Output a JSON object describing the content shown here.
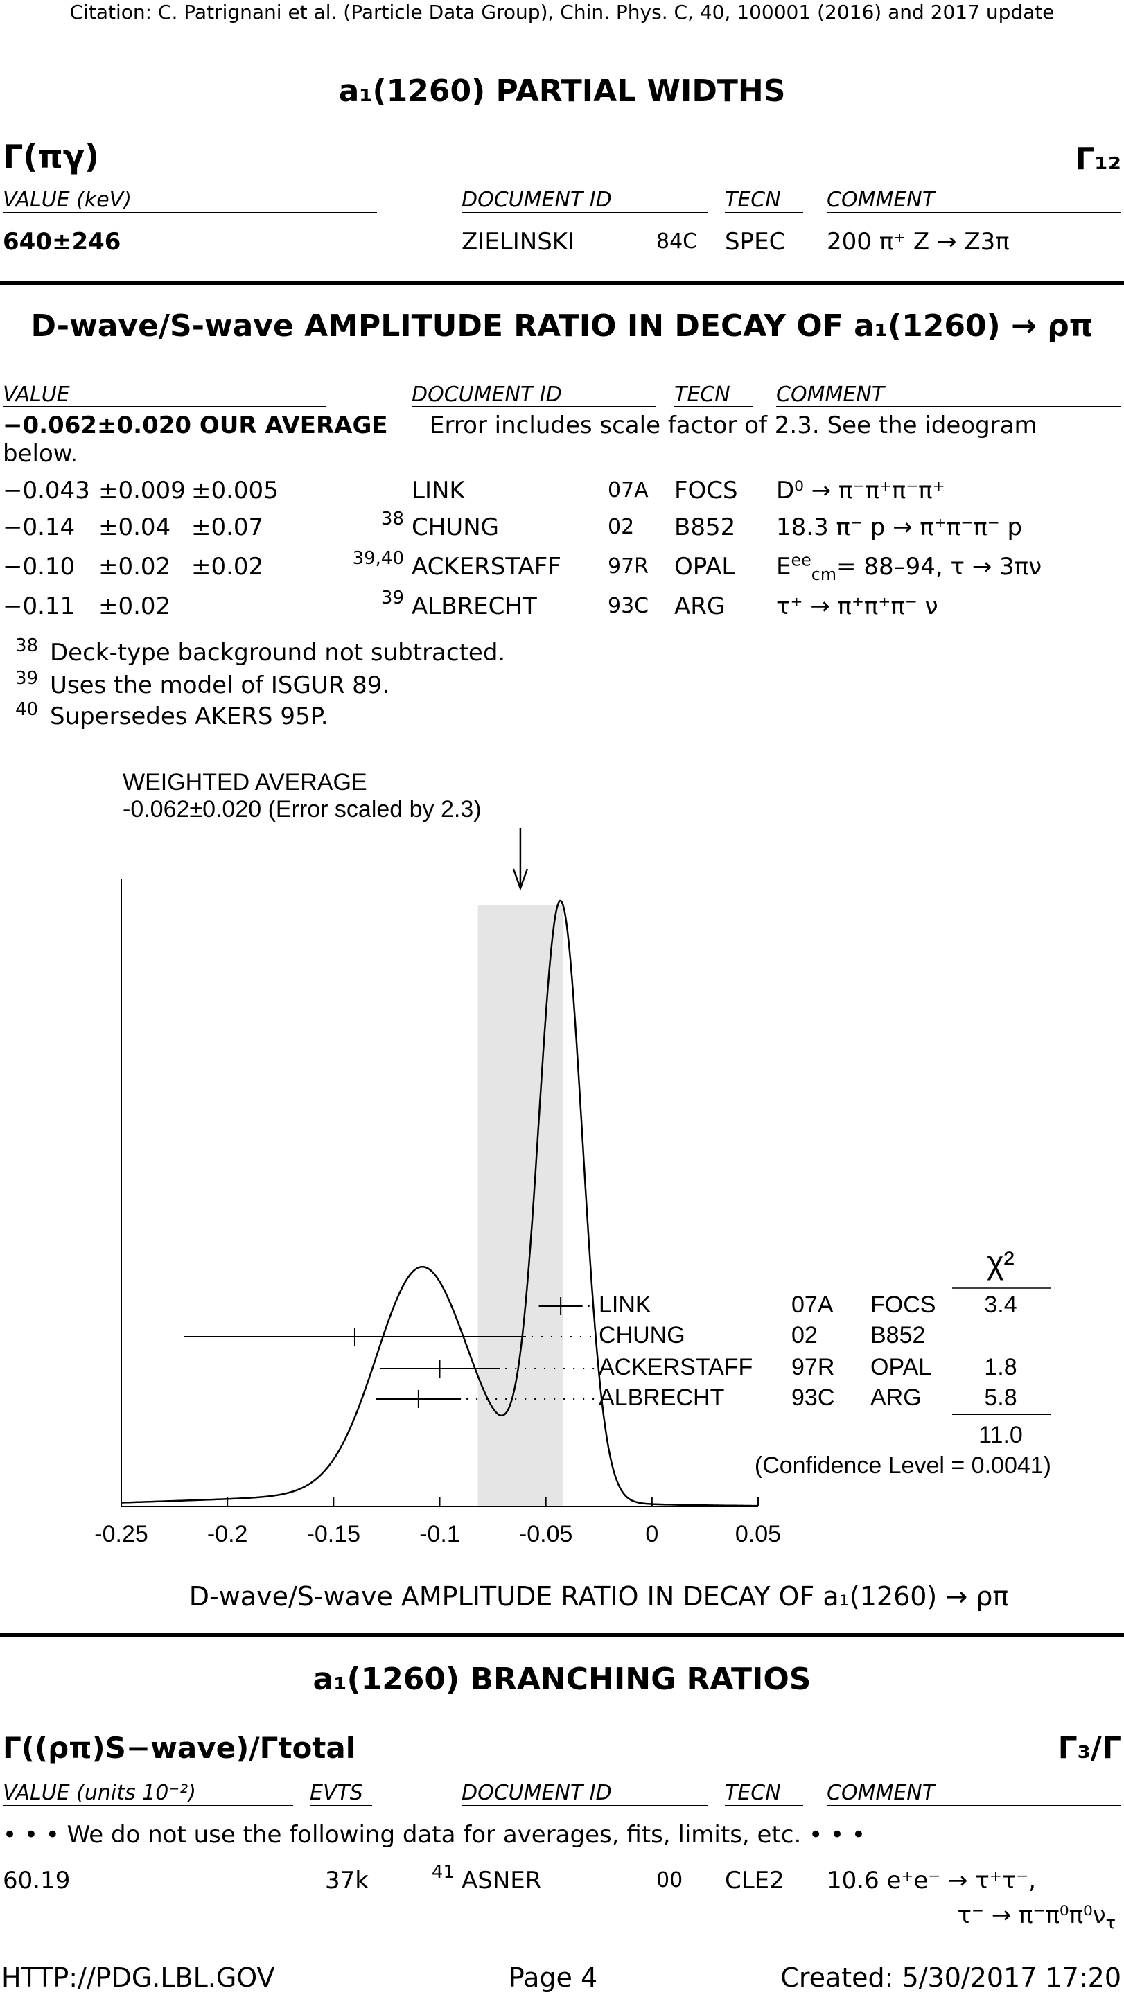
{
  "header": {
    "citation": "Citation: C. Patrignani et al. (Particle Data Group), Chin. Phys. C, 40, 100001 (2016) and 2017 update"
  },
  "partial_widths": {
    "title": "a₁(1260) PARTIAL WIDTHS",
    "quantity": "Γ(πγ)",
    "code": "Γ₁₂",
    "columns": [
      "VALUE (keV)",
      "DOCUMENT ID",
      "TECN",
      "COMMENT"
    ],
    "rows": [
      {
        "value": "640±246",
        "document_id": "ZIELINSKI",
        "year": "84C",
        "tecn": "SPEC",
        "comment": [
          "200 π⁺ Z →  Z3π"
        ]
      }
    ]
  },
  "ratio": {
    "title": "D-wave/S-wave AMPLITUDE RATIO IN DECAY OF a₁(1260) →  ρπ",
    "columns": [
      "VALUE",
      "DOCUMENT ID",
      "TECN",
      "COMMENT"
    ],
    "average": {
      "value": "−0.062±0.020 OUR AVERAGE",
      "note": "Error includes scale factor of 2.3.  See the ideogram",
      "note_cont": "below."
    },
    "rows": [
      {
        "value": "−0.043",
        "stat": "±0.009",
        "syst": "±0.005",
        "document_id": "LINK",
        "year": "07A",
        "tecn": "FOCS",
        "comment": [
          "D⁰ →  π⁻π⁺π⁻π⁺"
        ]
      },
      {
        "value": "−0.14",
        "stat": "±0.04",
        "syst": "±0.07",
        "footnote": "38",
        "document_id": "CHUNG",
        "year": "02",
        "tecn": "B852",
        "comment": [
          "18.3 π⁻ p →  π⁺π⁻π⁻ p"
        ]
      },
      {
        "value": "−0.10",
        "stat": "±0.02",
        "syst": "±0.02",
        "footnote": "39,40",
        "document_id": "ACKERSTAFF",
        "year": "97R",
        "tecn": "OPAL",
        "comment": [
          "E",
          {
            "sup": "ee"
          },
          {
            "sub": "cm"
          },
          "= 88–94, τ →  3πν"
        ]
      },
      {
        "value": "−0.11",
        "stat": "±0.02",
        "footnote": "39",
        "document_id": "ALBRECHT",
        "year": "93C",
        "tecn": "ARG",
        "comment": [
          "τ⁺ →  π⁺π⁺π⁻ ν"
        ]
      }
    ],
    "footnotes": [
      {
        "mark": "38",
        "text": "Deck-type background not subtracted."
      },
      {
        "mark": "39",
        "text": "Uses the model of ISGUR 89."
      },
      {
        "mark": "40",
        "text": "Supersedes AKERS 95P."
      }
    ],
    "ideogram": {
      "label": "WEIGHTED AVERAGE",
      "average_text": "-0.062±0.020 (Error scaled by 2.3)",
      "average": -0.062,
      "error": 0.02,
      "xlim": [
        -0.25,
        0.05
      ],
      "xticks": [
        -0.25,
        -0.2,
        -0.15,
        -0.1,
        -0.05,
        0,
        0.05
      ],
      "chi2_header": "χ²",
      "chi2_total": "11.0",
      "confidence": "(Confidence Level = 0.0041)",
      "caption": "D-wave/S-wave AMPLITUDE RATIO IN DECAY OF a₁(1260) →  ρπ",
      "measurements": [
        {
          "name": "LINK",
          "year": "07A",
          "tecn": "FOCS",
          "chi2": "3.4",
          "value": -0.043,
          "errors": [
            0.009,
            0.005
          ]
        },
        {
          "name": "CHUNG",
          "year": "02",
          "tecn": "B852",
          "value": -0.14,
          "errors": [
            0.04,
            0.07
          ]
        },
        {
          "name": "ACKERSTAFF",
          "year": "97R",
          "tecn": "OPAL",
          "chi2": "1.8",
          "value": -0.1,
          "errors": [
            0.02,
            0.02
          ]
        },
        {
          "name": "ALBRECHT",
          "year": "93C",
          "tecn": "ARG",
          "chi2": "5.8",
          "value": -0.11,
          "errors": [
            0.02
          ]
        }
      ]
    }
  },
  "branching": {
    "title": "a₁(1260) BRANCHING RATIOS",
    "quantity": "Γ((ρπ)S−wave)/Γtotal",
    "code": "Γ₃/Γ",
    "columns": [
      "VALUE (units 10⁻²)",
      "EVTS",
      "DOCUMENT ID",
      "TECN",
      "COMMENT"
    ],
    "note": "• • • We do not use the following data for averages, fits, limits, etc. • • •",
    "rows": [
      {
        "value": "60.19",
        "evts": "37k",
        "footnote": "41",
        "document_id": "ASNER",
        "year": "00",
        "tecn": "CLE2",
        "comment": [
          "10.6 e⁺e⁻ →  τ⁺τ⁻,"
        ],
        "comment_cont": [
          "τ⁻ →  π⁻π⁰π⁰ν",
          {
            "sub": "τ"
          }
        ]
      }
    ]
  },
  "footer": {
    "url": "HTTP://PDG.LBL.GOV",
    "page": "Page 4",
    "created": "Created: 5/30/2017 17:20"
  }
}
